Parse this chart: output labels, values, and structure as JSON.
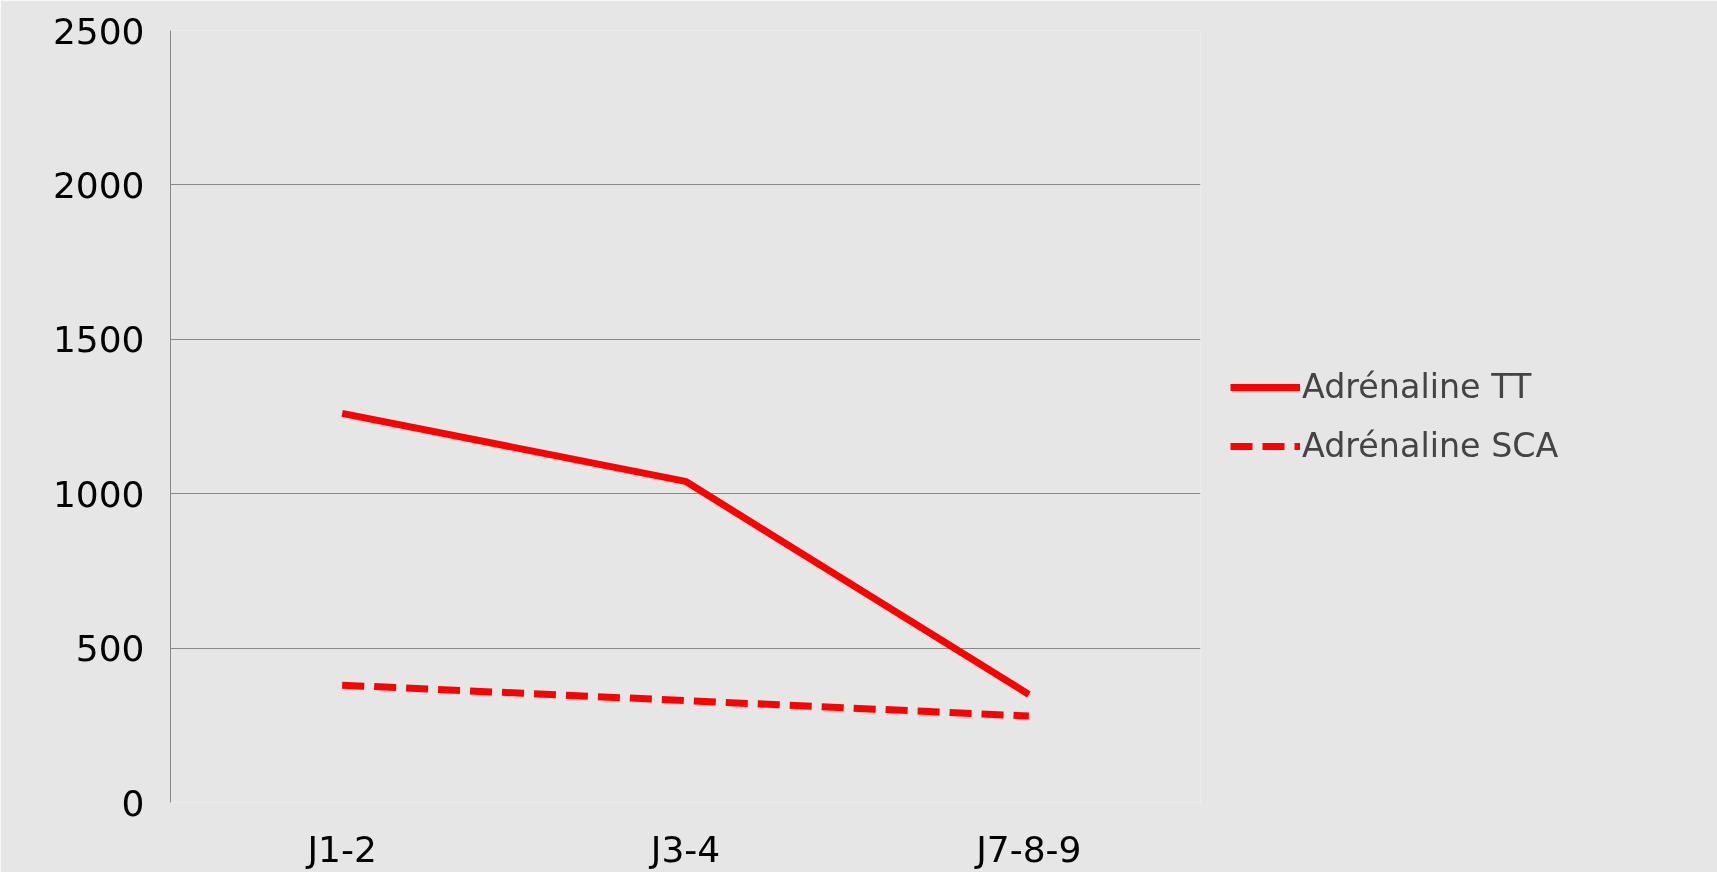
{
  "chart_data": {
    "type": "line",
    "categories": [
      "J1-2",
      "J3-4",
      "J7-8-9"
    ],
    "series": [
      {
        "name": "Adrénaline TT",
        "color": "#ff0000",
        "values": [
          1260,
          1040,
          350
        ],
        "line_style": "solid"
      },
      {
        "name": "Adrénaline SCA",
        "color": "#ff0000",
        "values": [
          380,
          330,
          280
        ],
        "line_style": "dashed"
      }
    ],
    "ylim": [
      0,
      2500
    ],
    "yticks": [
      0,
      500,
      1000,
      1500,
      2000,
      2500
    ],
    "grid": "y",
    "legend": "right",
    "marker": "none"
  }
}
